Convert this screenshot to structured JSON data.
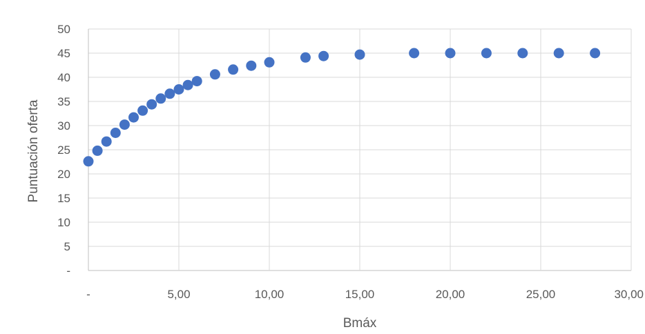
{
  "chart_data": {
    "type": "scatter",
    "title": "",
    "xlabel": "Bmáx",
    "ylabel": "Puntuación oferta",
    "xlim": [
      0,
      30
    ],
    "ylim": [
      0,
      50
    ],
    "grid": true,
    "legend": "none",
    "marker_color": "#4472c4",
    "grid_color": "#d9d9d9",
    "x_ticks": [
      {
        "value": 0,
        "label": "-"
      },
      {
        "value": 5,
        "label": "5,00"
      },
      {
        "value": 10,
        "label": "10,00"
      },
      {
        "value": 15,
        "label": "15,00"
      },
      {
        "value": 20,
        "label": "20,00"
      },
      {
        "value": 25,
        "label": "25,00"
      },
      {
        "value": 30,
        "label": "30,00"
      }
    ],
    "y_ticks": [
      {
        "value": 0,
        "label": "-"
      },
      {
        "value": 5,
        "label": "5"
      },
      {
        "value": 10,
        "label": "10"
      },
      {
        "value": 15,
        "label": "15"
      },
      {
        "value": 20,
        "label": "20"
      },
      {
        "value": 25,
        "label": "25"
      },
      {
        "value": 30,
        "label": "30"
      },
      {
        "value": 35,
        "label": "35"
      },
      {
        "value": 40,
        "label": "40"
      },
      {
        "value": 45,
        "label": "45"
      },
      {
        "value": 50,
        "label": "50"
      }
    ],
    "series": [
      {
        "points": [
          {
            "x": 0,
            "y": 22.6
          },
          {
            "x": 0.5,
            "y": 24.8
          },
          {
            "x": 1,
            "y": 26.7
          },
          {
            "x": 1.5,
            "y": 28.5
          },
          {
            "x": 2,
            "y": 30.2
          },
          {
            "x": 2.5,
            "y": 31.7
          },
          {
            "x": 3,
            "y": 33.1
          },
          {
            "x": 3.5,
            "y": 34.4
          },
          {
            "x": 4,
            "y": 35.6
          },
          {
            "x": 4.5,
            "y": 36.6
          },
          {
            "x": 5,
            "y": 37.5
          },
          {
            "x": 5.5,
            "y": 38.4
          },
          {
            "x": 6,
            "y": 39.2
          },
          {
            "x": 7,
            "y": 40.6
          },
          {
            "x": 8,
            "y": 41.6
          },
          {
            "x": 9,
            "y": 42.4
          },
          {
            "x": 10,
            "y": 43.1
          },
          {
            "x": 12,
            "y": 44.1
          },
          {
            "x": 13,
            "y": 44.4
          },
          {
            "x": 15,
            "y": 44.7
          },
          {
            "x": 18,
            "y": 45.0
          },
          {
            "x": 20,
            "y": 45.0
          },
          {
            "x": 22,
            "y": 45.0
          },
          {
            "x": 24,
            "y": 45.0
          },
          {
            "x": 26,
            "y": 45.0
          },
          {
            "x": 28,
            "y": 45.0
          }
        ]
      }
    ]
  }
}
